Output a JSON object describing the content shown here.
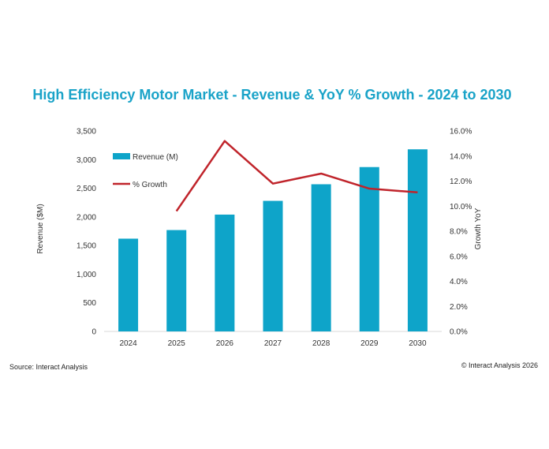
{
  "chart_data": {
    "type": "bar",
    "title": "High Efficiency Motor Market - Revenue & YoY % Growth - 2024 to 2030",
    "ylabel": "Revenue ($M)",
    "y2label": "Growth YoY",
    "categories": [
      "2024",
      "2025",
      "2026",
      "2027",
      "2028",
      "2029",
      "2030"
    ],
    "ylim": [
      0,
      3500
    ],
    "y_ticks": [
      "0",
      "500",
      "1,000",
      "1,500",
      "2,000",
      "2,500",
      "3,000",
      "3,500"
    ],
    "y2lim": [
      0,
      16
    ],
    "y2_ticks": [
      "0.0%",
      "2.0%",
      "4.0%",
      "6.0%",
      "8.0%",
      "10.0%",
      "12.0%",
      "14.0%",
      "16.0%"
    ],
    "series": [
      {
        "name": "Revenue (M)",
        "type": "bar",
        "axis": "left",
        "color": "#0ea4c9",
        "values": [
          1620,
          1770,
          2040,
          2280,
          2570,
          2870,
          3180
        ]
      },
      {
        "name": "% Growth",
        "type": "line",
        "axis": "right",
        "color": "#c0242b",
        "values": [
          null,
          9.6,
          15.2,
          11.8,
          12.6,
          11.4,
          11.1
        ]
      }
    ],
    "legend_position": "top-left",
    "grid": false
  },
  "footer": {
    "source": "Source: Interact Analysis",
    "copyright": "© Interact Analysis 2026"
  }
}
